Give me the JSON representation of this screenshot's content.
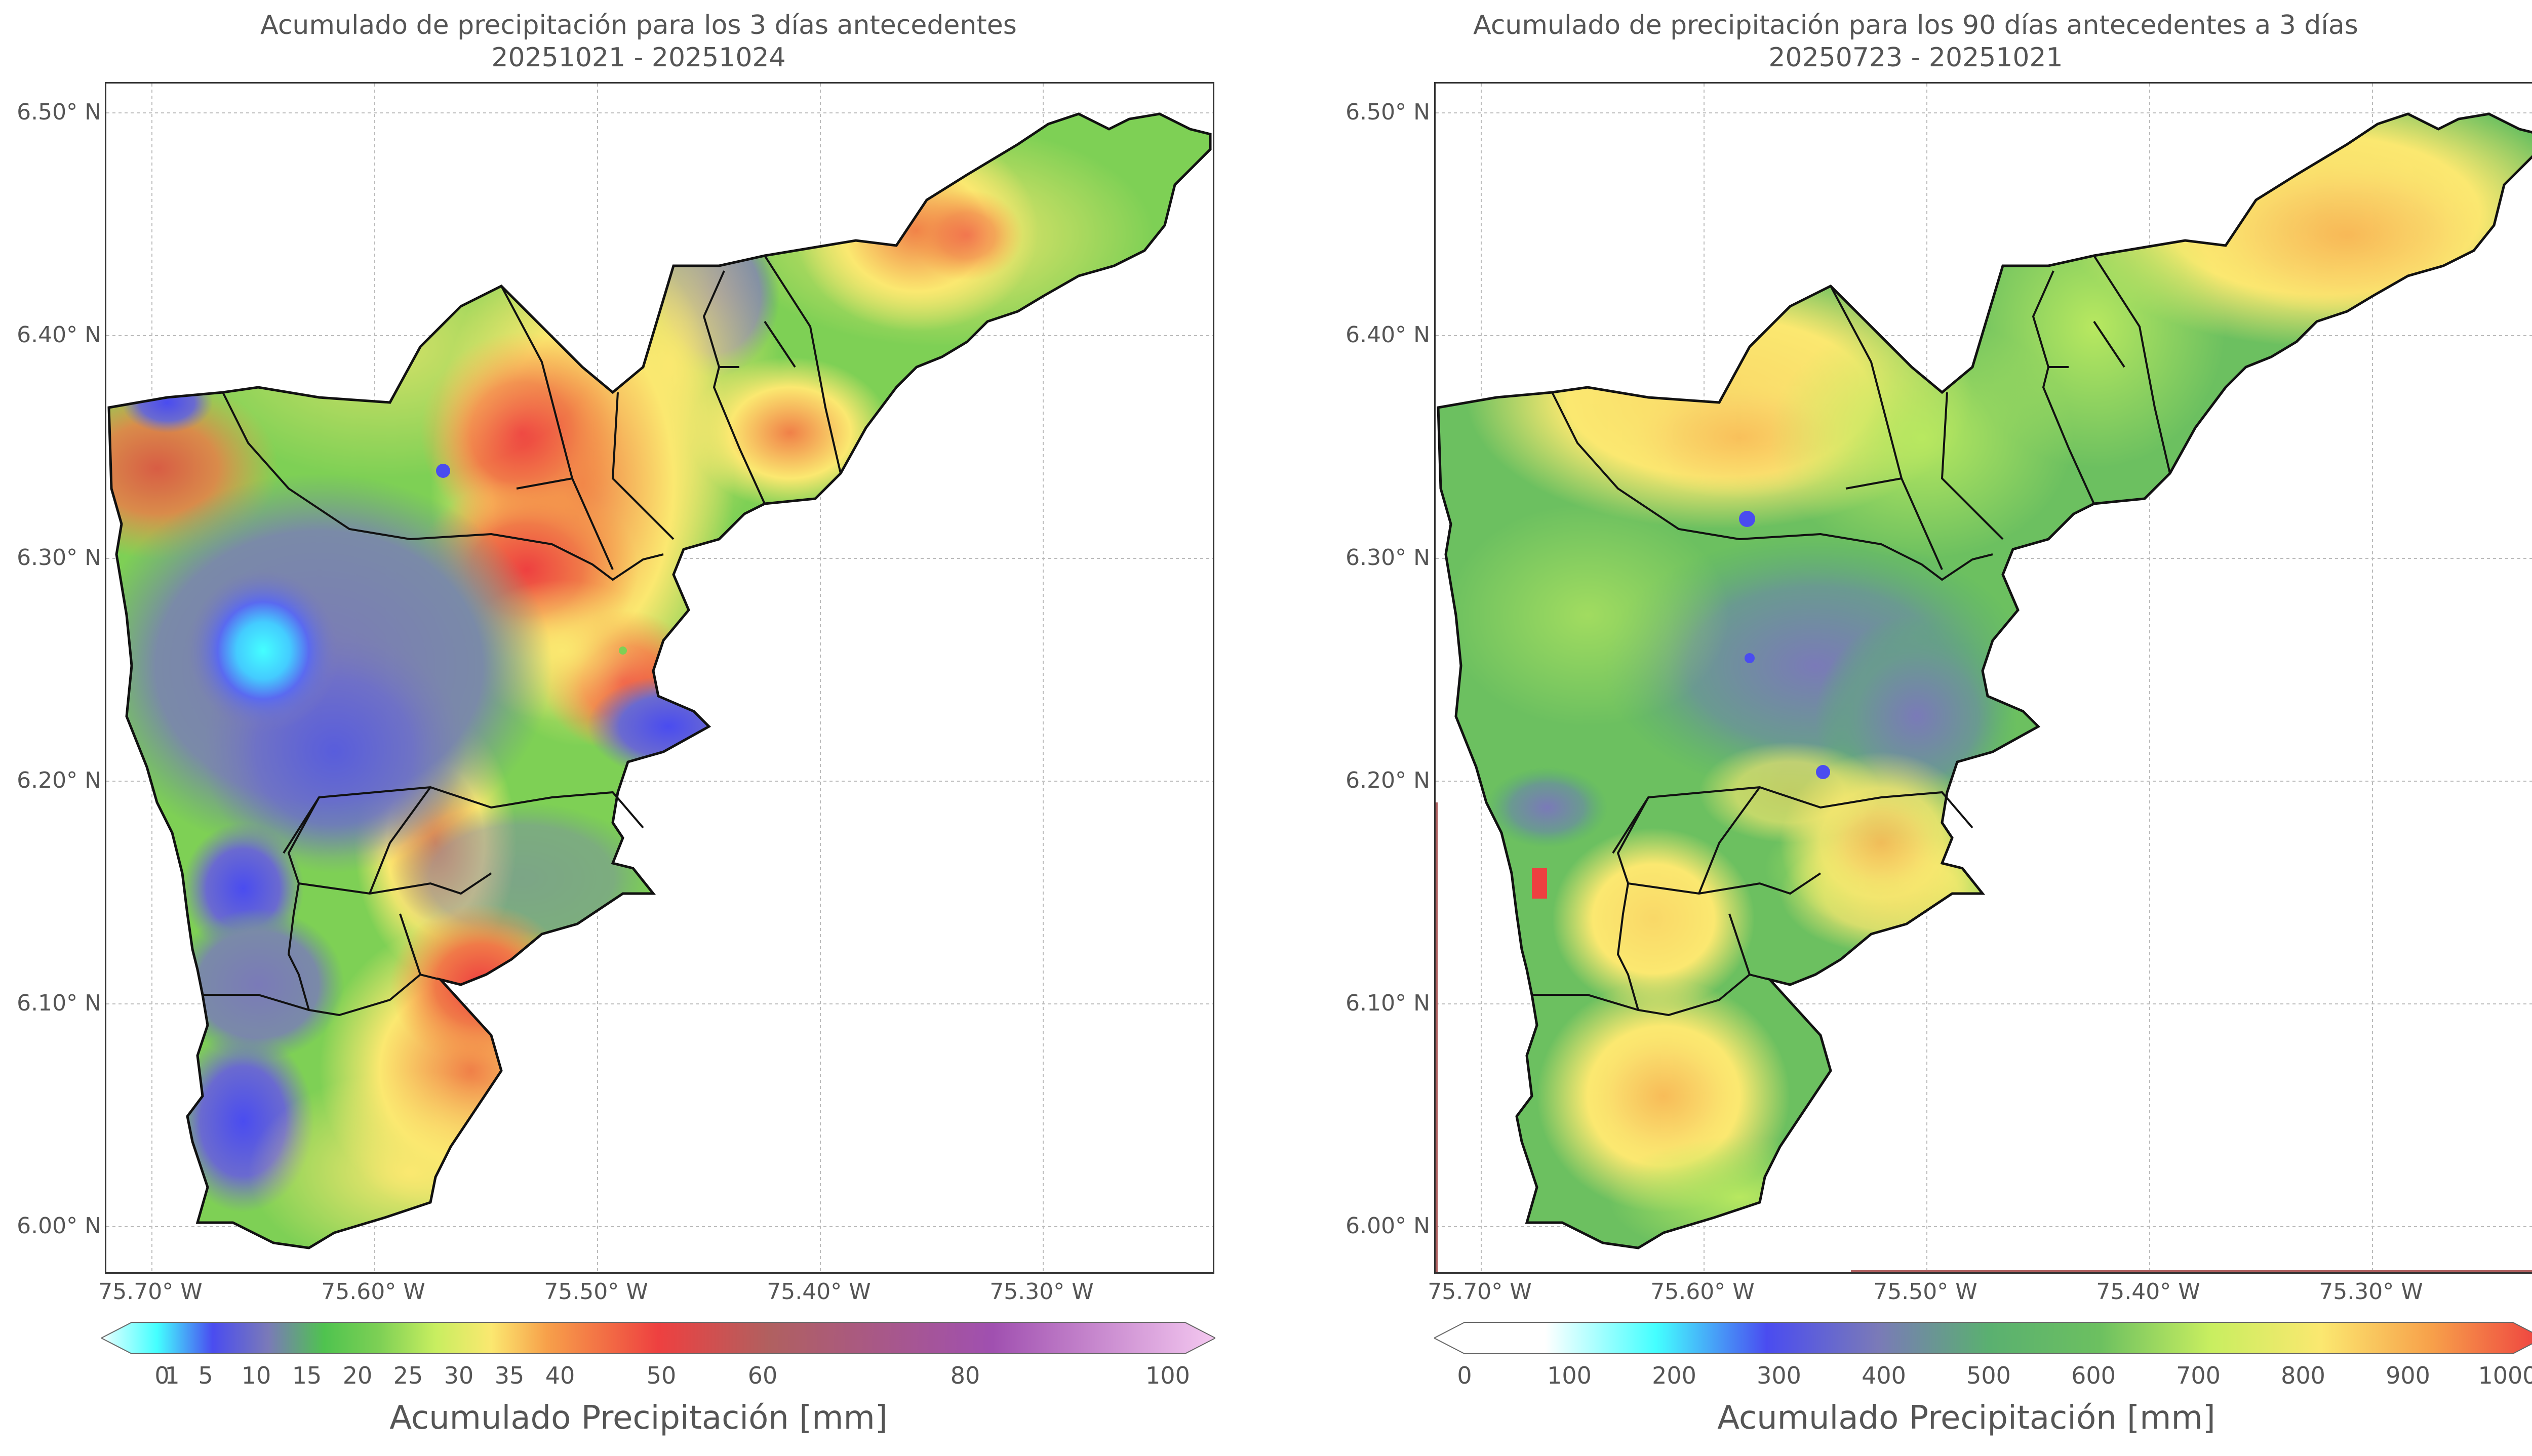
{
  "left": {
    "title_line1": "Acumulado de precipitación para los 3 días antecedentes",
    "title_line2": "20251021 - 20251024",
    "colorbar_label": "Acumulado Precipitación [mm]",
    "colorbar_ticks": [
      "0",
      "1",
      "5",
      "10",
      "15",
      "20",
      "25",
      "30",
      "35",
      "40",
      "50",
      "60",
      "80",
      "100"
    ],
    "colorbar_values": [
      0,
      1,
      5,
      10,
      15,
      20,
      25,
      30,
      35,
      40,
      50,
      60,
      80,
      100
    ]
  },
  "right": {
    "title_line1": "Acumulado de precipitación para los 90 días antecedentes a 3 días",
    "title_line2": "20250723 - 20251021",
    "colorbar_label": "Acumulado Precipitación [mm]",
    "colorbar_ticks": [
      "0",
      "100",
      "200",
      "300",
      "400",
      "500",
      "600",
      "700",
      "800",
      "900",
      "1000"
    ],
    "colorbar_values": [
      0,
      100,
      200,
      300,
      400,
      500,
      600,
      700,
      800,
      900,
      1000
    ]
  },
  "axes": {
    "lat_ticks": [
      "6.50° N",
      "6.40° N",
      "6.30° N",
      "6.20° N",
      "6.10° N",
      "6.00° N"
    ],
    "lat_values": [
      6.5,
      6.4,
      6.3,
      6.2,
      6.1,
      6.0
    ],
    "lon_ticks": [
      "75.70° W",
      "75.60° W",
      "75.50° W",
      "75.40° W",
      "75.30° W"
    ],
    "lon_values": [
      -75.7,
      -75.6,
      -75.5,
      -75.4,
      -75.3
    ],
    "lat_range": [
      5.98,
      6.515
    ],
    "lon_range": [
      -75.72,
      -75.22
    ]
  },
  "colors": {
    "cyan": "#44ffff",
    "blue": "#4a4cf0",
    "slate": "#7a7ab8",
    "green": "#4fc34f",
    "lightgreen": "#9be35a",
    "yellow": "#fbe870",
    "orange": "#f7a04a",
    "red": "#ee4040",
    "brown": "#b06060",
    "purple": "#a050b0",
    "pink": "#f4c8f0"
  }
}
